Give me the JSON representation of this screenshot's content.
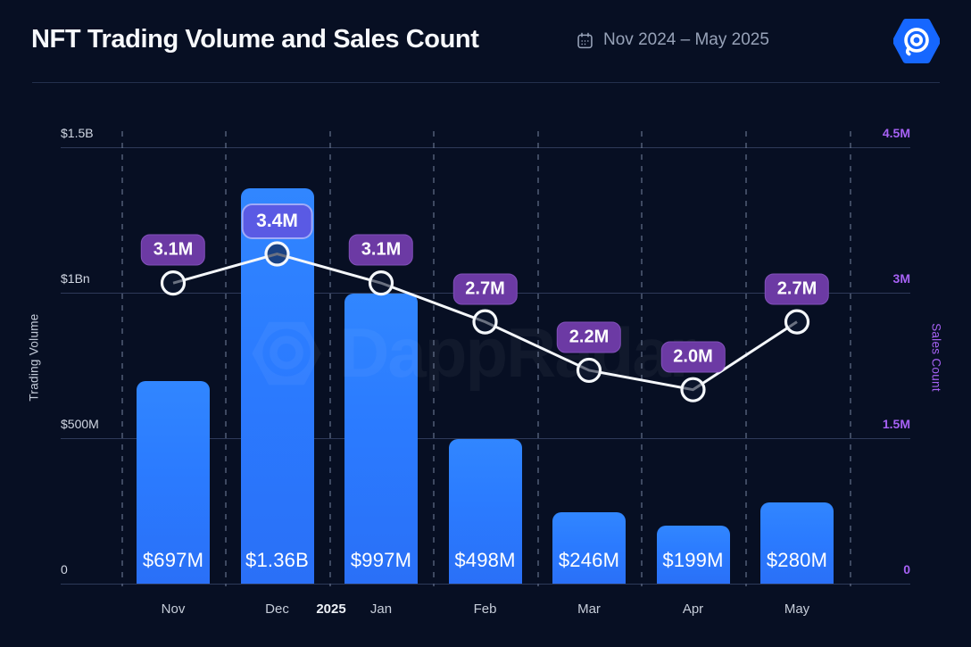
{
  "header": {
    "title": "NFT Trading Volume and Sales Count",
    "date_range": "Nov 2024 – May 2025",
    "calendar_icon": "calendar-icon",
    "brand_logo": "dappradar-hexagon-logo"
  },
  "watermark_text": "DappRadar",
  "chart_data": {
    "type": "bar+line combo",
    "categories": [
      "Nov",
      "Dec",
      "Jan",
      "Feb",
      "Mar",
      "Apr",
      "May"
    ],
    "year_separator": {
      "label": "2025",
      "position": "between Dec and Jan"
    },
    "series": [
      {
        "name": "Trading Volume",
        "type": "bar",
        "unit": "USD millions",
        "values": [
          697,
          1360,
          997,
          498,
          246,
          199,
          280
        ],
        "labels": [
          "$697M",
          "$1.36B",
          "$997M",
          "$498M",
          "$246M",
          "$199M",
          "$280M"
        ],
        "color": "#2b7bff"
      },
      {
        "name": "Sales Count",
        "type": "line",
        "unit": "millions",
        "values": [
          3.1,
          3.4,
          3.1,
          2.7,
          2.2,
          2.0,
          2.7
        ],
        "labels": [
          "3.1M",
          "3.4M",
          "3.1M",
          "2.7M",
          "2.2M",
          "2.0M",
          "2.7M"
        ],
        "highlight_index": 1,
        "line_color": "#f4f7fb",
        "badge_color": "#6c3aa4",
        "badge_highlight_color": "#5a5ae4"
      }
    ],
    "left_axis": {
      "title": "Trading Volume",
      "ticks": [
        "$1.5B",
        "$1Bn",
        "$500M",
        "0"
      ],
      "max": 1500,
      "min": 0
    },
    "right_axis": {
      "title": "Sales Count",
      "ticks": [
        "4.5M",
        "3M",
        "1.5M",
        "0"
      ],
      "max": 4.5,
      "min": 0,
      "color": "#a762f5"
    },
    "grid": {
      "horizontal": "solid",
      "vertical": "dashed between categories"
    },
    "legend_position": "none",
    "background": "#070f23"
  },
  "colors": {
    "background": "#070f23",
    "bar_blue": "#2b7bff",
    "badge_purple": "#6c3aa4",
    "badge_highlight_indigo": "#5a5ae4",
    "right_axis_purple": "#a762f5",
    "line_white": "#f4f7fb",
    "brand_blue": "#1667ff"
  }
}
